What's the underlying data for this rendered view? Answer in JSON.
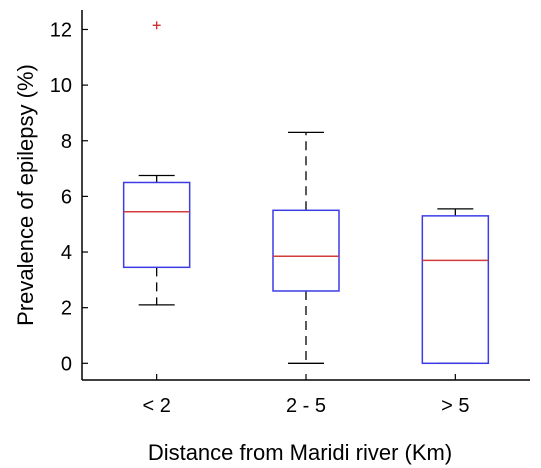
{
  "chart_data": {
    "type": "boxplot",
    "title": "",
    "xlabel": "Distance from Maridi river (Km)",
    "ylabel": "Prevalence of epilepsy (%)",
    "ylim": [
      -0.6,
      12.7
    ],
    "yticks": [
      0,
      2,
      4,
      6,
      8,
      10,
      12
    ],
    "grid": false,
    "categories": [
      "< 2",
      "2 - 5",
      "> 5"
    ],
    "boxes": [
      {
        "category": "< 2",
        "whisker_low": 2.1,
        "q1": 3.45,
        "median": 5.45,
        "q3": 6.5,
        "whisker_high": 6.75,
        "outliers": [
          12.15
        ]
      },
      {
        "category": "2 - 5",
        "whisker_low": 0.0,
        "q1": 2.6,
        "median": 3.85,
        "q3": 5.5,
        "whisker_high": 8.3,
        "outliers": []
      },
      {
        "category": "> 5",
        "whisker_low": 0.0,
        "q1": 0.0,
        "median": 3.7,
        "q3": 5.3,
        "whisker_high": 5.55,
        "outliers": []
      }
    ],
    "colors": {
      "box": "#3c3ce6",
      "median": "#d23c3c",
      "whisker": "#000000",
      "outlier": "#c83232",
      "axis": "#000000"
    }
  }
}
